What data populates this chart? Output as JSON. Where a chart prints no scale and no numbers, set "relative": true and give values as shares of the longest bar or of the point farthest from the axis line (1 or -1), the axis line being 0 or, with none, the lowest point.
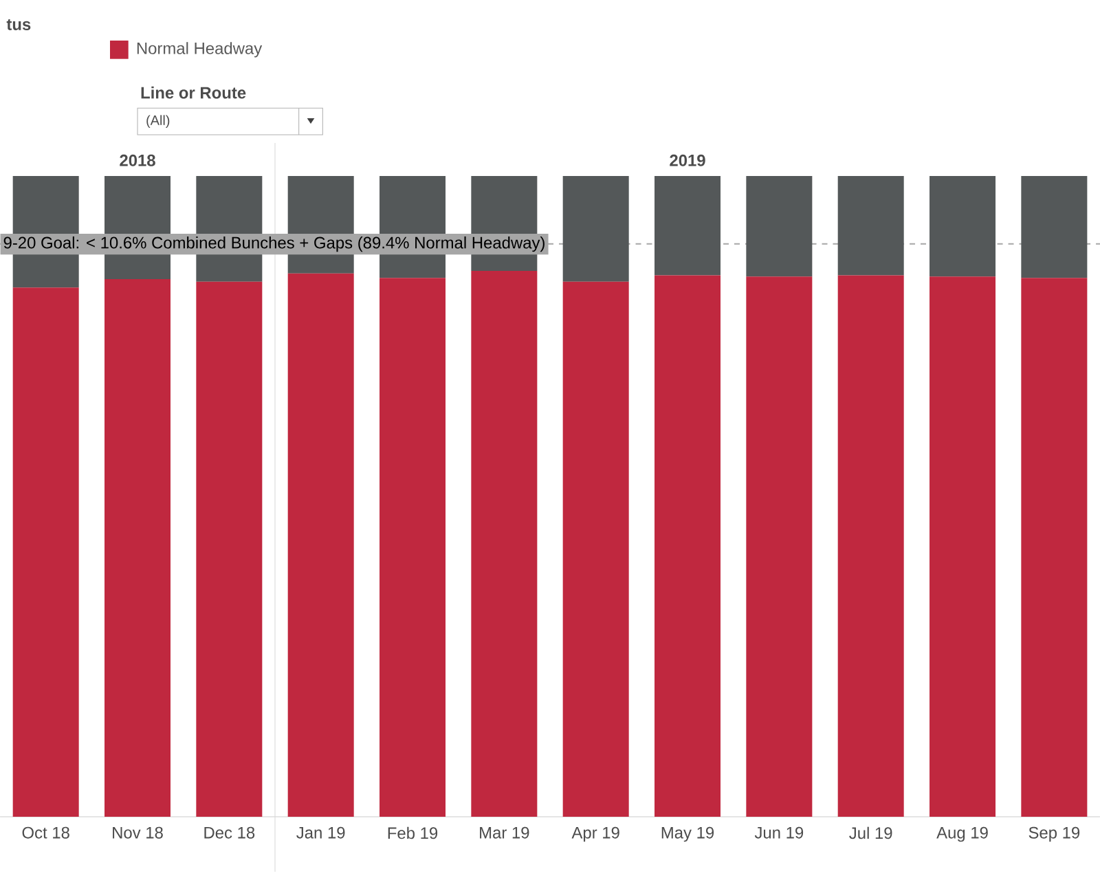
{
  "chart_data": {
    "type": "bar",
    "stacked": true,
    "relative": true,
    "legend": "top left",
    "legend_title": "tus",
    "categories": [
      "Oct 18",
      "Nov 18",
      "Dec 18",
      "Jan 19",
      "Feb 19",
      "Mar 19",
      "Apr 19",
      "May 19",
      "Jun 19",
      "Jul 19",
      "Aug 19",
      "Sep 19"
    ],
    "series": [
      {
        "name": "Normal Headway",
        "color": "#c0283f",
        "values": [
          0.826,
          0.839,
          0.835,
          0.848,
          0.841,
          0.852,
          0.835,
          0.845,
          0.843,
          0.845,
          0.843,
          0.841
        ]
      },
      {
        "color": "#545859",
        "values": [
          0.174,
          0.161,
          0.165,
          0.152,
          0.159,
          0.148,
          0.165,
          0.155,
          0.157,
          0.155,
          0.157,
          0.159
        ]
      }
    ],
    "ref_lines": [
      {
        "axis": "y",
        "value": 0.894,
        "label": "9-20 Goal: < 10.6% Combined Bunches + Gaps (89.4% Normal Headway)",
        "color": "#a6a6a6",
        "line_style": "dashed"
      }
    ],
    "annotations": [
      "2018",
      "2019",
      "Line or Route",
      "(All)"
    ]
  }
}
